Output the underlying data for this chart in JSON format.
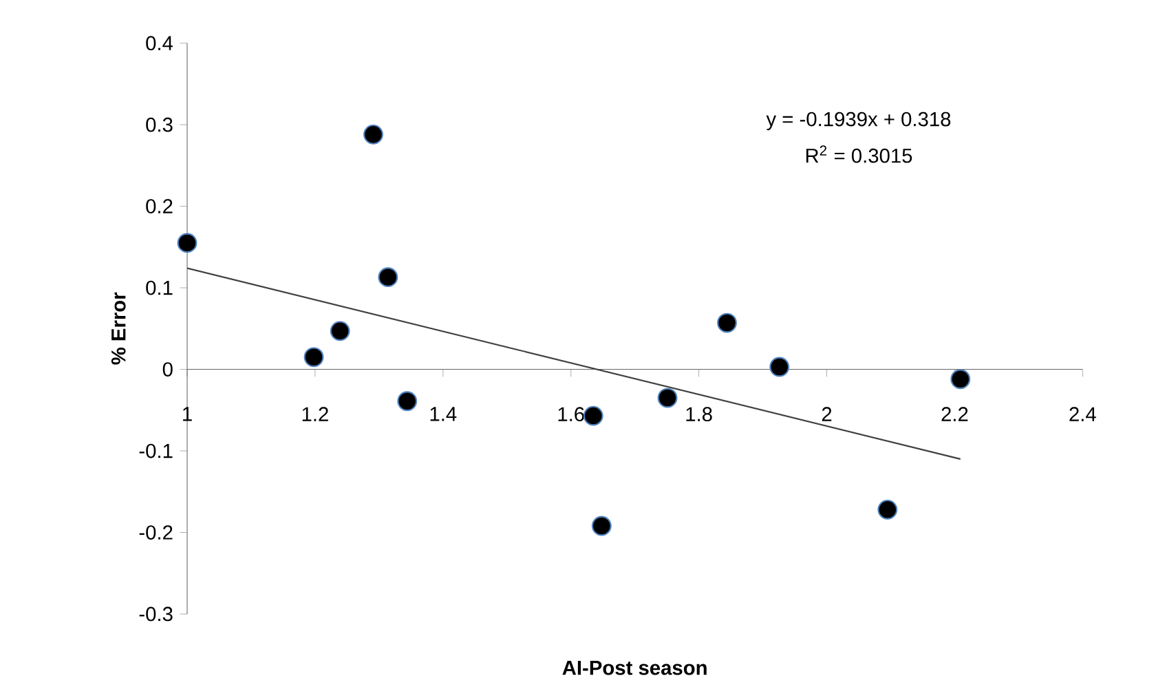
{
  "chart_data": {
    "type": "scatter",
    "xlabel": "AI-Post season",
    "ylabel": "% Error",
    "xlim": [
      1,
      2.4
    ],
    "ylim": [
      -0.3,
      0.4
    ],
    "xticks": [
      1,
      1.2,
      1.4,
      1.6,
      1.8,
      2,
      2.2,
      2.4
    ],
    "yticks": [
      -0.3,
      -0.2,
      -0.1,
      0,
      0.1,
      0.2,
      0.3,
      0.4
    ],
    "grid": false,
    "annotations": [
      "y = -0.1939x + 0.318",
      "R$^{2}$ = 0.3015"
    ],
    "series": [
      {
        "marker": "circle",
        "color": "#000000",
        "x": [
          1.0,
          1.198,
          1.239,
          1.291,
          1.314,
          1.344,
          1.635,
          1.648,
          1.751,
          1.844,
          1.926,
          2.095,
          2.209
        ],
        "values": [
          0.155,
          0.015,
          0.047,
          0.288,
          0.113,
          -0.039,
          -0.057,
          -0.192,
          -0.035,
          0.057,
          0.003,
          -0.172,
          -0.012
        ]
      },
      {
        "type": "line",
        "color": "#404040",
        "marker": "none",
        "x": [
          1.0,
          2.209
        ],
        "values": [
          0.124,
          -0.11
        ]
      }
    ]
  }
}
